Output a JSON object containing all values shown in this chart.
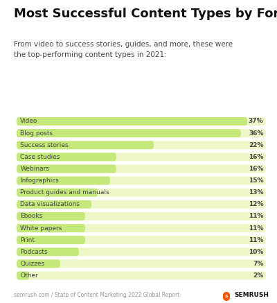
{
  "title": "Most Successful Content Types by Format",
  "subtitle": "From video to success stories, guides, and more, these were\nthe top-performing content types in 2021:",
  "footer": "semrush.com / State of Content Marketing 2022 Global Report",
  "categories": [
    "Video",
    "Blog posts",
    "Success stories",
    "Case studies",
    "Webinars",
    "Infographics",
    "Product guides and manuals",
    "Data visualizations",
    "Ebooks",
    "White papers",
    "Print",
    "Podcasts",
    "Quizzes",
    "Other"
  ],
  "values": [
    37,
    36,
    22,
    16,
    16,
    15,
    13,
    12,
    11,
    11,
    11,
    10,
    7,
    2
  ],
  "bg_color": "#fffffe",
  "bar_bg_color": "#eef7c8",
  "bar_fill_color": "#c5e87a",
  "label_color": "#444444",
  "value_color": "#444444",
  "title_color": "#111111",
  "subtitle_color": "#444444",
  "footer_color": "#999999",
  "max_val": 40,
  "bar_height": 0.7,
  "title_fontsize": 13,
  "subtitle_fontsize": 7.5,
  "label_fontsize": 6.5,
  "value_fontsize": 6.5,
  "footer_fontsize": 5.5
}
